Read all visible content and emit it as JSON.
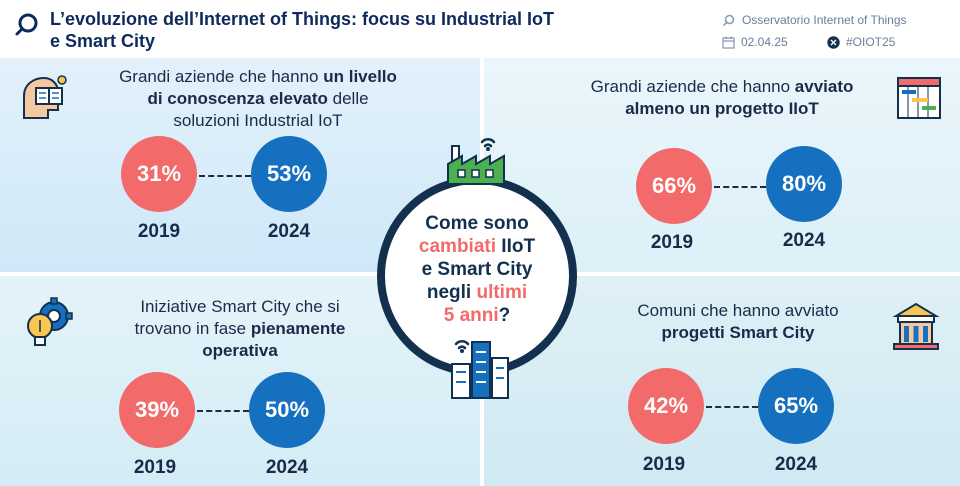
{
  "header": {
    "title_line1": "L’evoluzione dell’Internet of Things: focus su Industrial IoT",
    "title_line2": "e Smart City",
    "source": "Osservatorio Internet of Things",
    "date": "02.04.25",
    "hashtag": "#OIOT25"
  },
  "center": {
    "line1": "Come sono",
    "line2_hl": "cambiati",
    "line2_rest": " IIoT",
    "line3": "e Smart City",
    "line4_pre": "negli ",
    "line4_hl": "ultimi",
    "line5_hl": "5 anni",
    "line5_rest": "?"
  },
  "quadrants": {
    "top_left": {
      "line1_pre": "Grandi aziende che hanno ",
      "line1_bold": "un livello",
      "line2_bold": "di conoscenza elevato",
      "line2_post": " delle",
      "line3": "soluzioni Industrial IoT",
      "value_2019": "31%",
      "value_2024": "53%",
      "year_a": "2019",
      "year_b": "2024"
    },
    "top_right": {
      "line1_pre": "Grandi aziende che hanno ",
      "line1_bold": "avviato",
      "line2_bold": "almeno un progetto IIoT",
      "value_2019": "66%",
      "value_2024": "80%",
      "year_a": "2019",
      "year_b": "2024"
    },
    "bottom_left": {
      "line1": "Iniziative Smart City che si",
      "line2_pre": "trovano in fase ",
      "line2_bold": "pienamente",
      "line3_bold": "operativa",
      "value_2019": "39%",
      "value_2024": "50%",
      "year_a": "2019",
      "year_b": "2024"
    },
    "bottom_right": {
      "line1": "Comuni che hanno avviato",
      "line2_bold": "progetti Smart City",
      "value_2019": "42%",
      "value_2024": "65%",
      "year_a": "2019",
      "year_b": "2024"
    }
  },
  "colors": {
    "accent_red": "#f26a6a",
    "accent_blue": "#1570c0",
    "dark_navy": "#13314f"
  },
  "icons": [
    "search-icon",
    "calendar-icon",
    "x-logo-icon",
    "brain-book-icon",
    "gantt-chart-icon",
    "gear-bulb-icon",
    "town-hall-icon",
    "factory-wifi-icon",
    "city-wifi-icon"
  ]
}
